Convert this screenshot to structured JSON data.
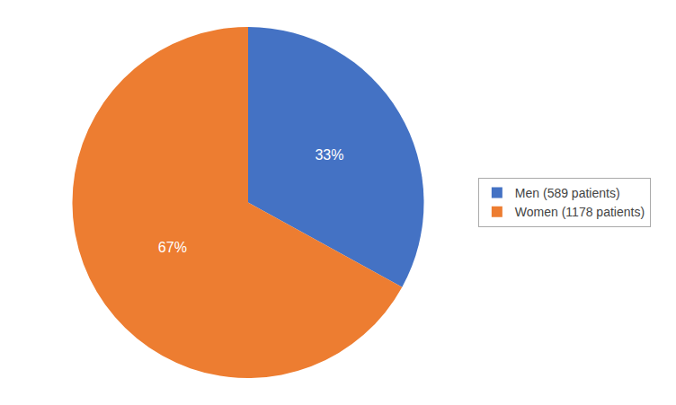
{
  "chart_data": {
    "type": "pie",
    "categories": [
      "Men (589 patients)",
      "Women (1178 patients)"
    ],
    "values": [
      33,
      67
    ],
    "value_labels": [
      "33%",
      "67%"
    ],
    "colors": [
      "#4472C4",
      "#ED7D31"
    ],
    "data_labels": true,
    "legend": "right"
  }
}
